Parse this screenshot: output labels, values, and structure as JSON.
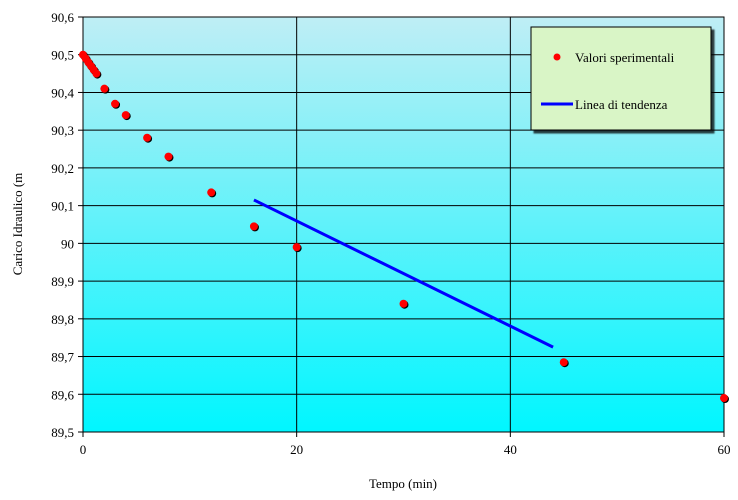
{
  "chart_data": {
    "type": "scatter",
    "xlabel": "Tempo (min)",
    "ylabel": "Carico Idraulico (m",
    "xlim": [
      0,
      60
    ],
    "ylim": [
      89.5,
      90.6
    ],
    "xticks": [
      0,
      20,
      40,
      60
    ],
    "yticks": [
      89.5,
      89.6,
      89.7,
      89.8,
      89.9,
      90.0,
      90.1,
      90.2,
      90.3,
      90.4,
      90.5,
      90.6
    ],
    "xtick_labels": [
      "0",
      "20",
      "40",
      "60"
    ],
    "ytick_labels": [
      "89,5",
      "89,6",
      "89,7",
      "89,8",
      "89,9",
      "90",
      "90,1",
      "90,2",
      "90,3",
      "90,4",
      "90,5",
      "90,6"
    ],
    "grid": true,
    "legend_position": "top-right",
    "series": [
      {
        "name": "Valori sperimentali",
        "kind": "scatter",
        "color": "#ff0000",
        "x": [
          0,
          0.25,
          0.5,
          0.75,
          1,
          1.25,
          2,
          3,
          4,
          6,
          8,
          12,
          16,
          20,
          30,
          45,
          60
        ],
        "y": [
          90.5,
          90.49,
          90.48,
          90.47,
          90.46,
          90.45,
          90.41,
          90.37,
          90.34,
          90.28,
          90.23,
          90.135,
          90.045,
          89.99,
          89.84,
          89.685,
          89.59
        ]
      },
      {
        "name": "Linea di tendenza",
        "kind": "line",
        "color": "#0000ff",
        "x": [
          16,
          44
        ],
        "y": [
          90.115,
          89.725
        ]
      }
    ],
    "colors": {
      "plot_top": "#bfeef5",
      "plot_bottom": "#00f6ff",
      "legend_bg": "#d9f5c6",
      "grid": "#000000"
    }
  }
}
